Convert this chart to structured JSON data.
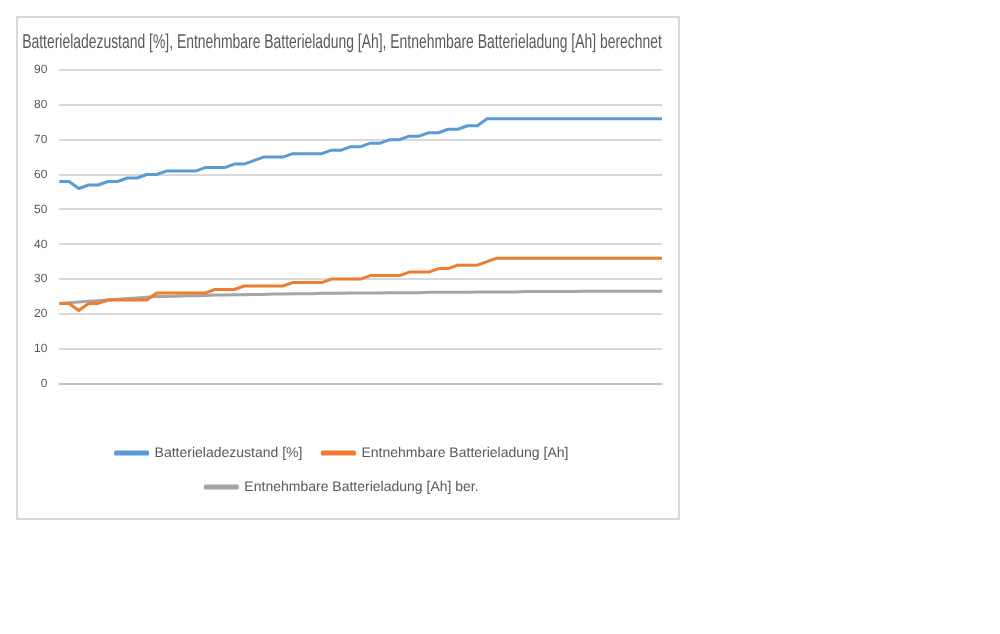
{
  "chart_data": {
    "type": "line",
    "title": "Batterieladezustand [%], Entnehmbare Batterieladung [Ah], Entnehmbare Batterieladung [Ah] berechnet",
    "categories": [
      null,
      null,
      null,
      null,
      null,
      null,
      null,
      null,
      null,
      null,
      null,
      null,
      null,
      null,
      null,
      null,
      null,
      null,
      null,
      null,
      null,
      null,
      null,
      null,
      null,
      null,
      null,
      null,
      null,
      null,
      null,
      null,
      null,
      null,
      null,
      null,
      null,
      null,
      null,
      null,
      null,
      null,
      null,
      null,
      null,
      null,
      null,
      null,
      null,
      null,
      null,
      null,
      null,
      null,
      null,
      null,
      null,
      null,
      null,
      null,
      null,
      null,
      null
    ],
    "series": [
      {
        "name": "Batterieladezustand [%]",
        "color": "#5b9bd5",
        "values": [
          58,
          58,
          56,
          57,
          57,
          58,
          58,
          59,
          59,
          60,
          60,
          61,
          61,
          61,
          61,
          62,
          62,
          62,
          63,
          63,
          64,
          65,
          65,
          65,
          66,
          66,
          66,
          66,
          67,
          67,
          68,
          68,
          69,
          69,
          70,
          70,
          71,
          71,
          72,
          72,
          73,
          73,
          74,
          74,
          76,
          76,
          76,
          76,
          76,
          76,
          76,
          76,
          76,
          76,
          76,
          76,
          76,
          76,
          76,
          76,
          76,
          76,
          76
        ]
      },
      {
        "name": "Entnehmbare Batterieladung [Ah]",
        "color": "#ed7d31",
        "values": [
          23,
          23,
          21,
          23,
          23,
          24,
          24,
          24,
          24,
          24,
          26,
          26,
          26,
          26,
          26,
          26,
          27,
          27,
          27,
          28,
          28,
          28,
          28,
          28,
          29,
          29,
          29,
          29,
          30,
          30,
          30,
          30,
          31,
          31,
          31,
          31,
          32,
          32,
          32,
          33,
          33,
          34,
          34,
          34,
          35,
          36,
          36,
          36,
          36,
          36,
          36,
          36,
          36,
          36,
          36,
          36,
          36,
          36,
          36,
          36,
          36,
          36,
          36
        ]
      },
      {
        "name": "Entnehmbare Batterieladung [Ah] ber.",
        "color": "#a5a5a5",
        "values": [
          23,
          23.2,
          23.4,
          23.6,
          23.8,
          24,
          24.2,
          24.4,
          24.6,
          24.8,
          25,
          25,
          25.1,
          25.2,
          25.2,
          25.3,
          25.4,
          25.4,
          25.5,
          25.5,
          25.6,
          25.6,
          25.7,
          25.7,
          25.8,
          25.8,
          25.8,
          25.9,
          25.9,
          25.9,
          26,
          26,
          26,
          26,
          26.1,
          26.1,
          26.1,
          26.1,
          26.2,
          26.2,
          26.2,
          26.2,
          26.2,
          26.3,
          26.3,
          26.3,
          26.3,
          26.3,
          26.4,
          26.4,
          26.4,
          26.4,
          26.4,
          26.4,
          26.5,
          26.5,
          26.5,
          26.5,
          26.5,
          26.5,
          26.5,
          26.5,
          26.5
        ]
      }
    ],
    "ylim": [
      0,
      90
    ],
    "yticks": [
      0,
      10,
      20,
      30,
      40,
      50,
      60,
      70,
      80,
      90
    ],
    "grid": "y",
    "legend": "bottom",
    "marker": "none",
    "line_style": "solid"
  }
}
